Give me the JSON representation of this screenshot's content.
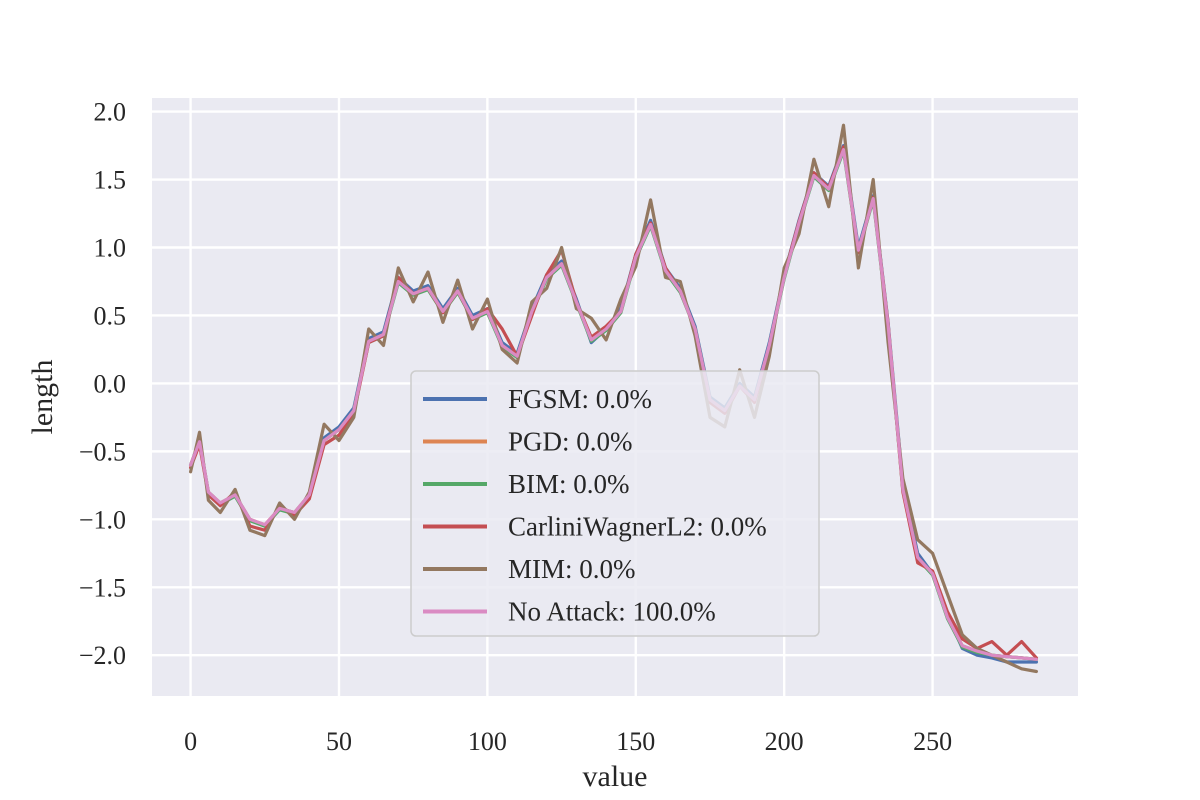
{
  "chart_data": {
    "type": "line",
    "title": "",
    "xlabel": "value",
    "ylabel": "length",
    "xlim": [
      -13,
      299
    ],
    "ylim": [
      -2.3,
      2.1
    ],
    "xticks": [
      0,
      50,
      100,
      150,
      200,
      250
    ],
    "yticks": [
      -2.0,
      -1.5,
      -1.0,
      -0.5,
      0.0,
      0.5,
      1.0,
      1.5,
      2.0
    ],
    "xtick_labels": [
      "0",
      "50",
      "100",
      "150",
      "200",
      "250"
    ],
    "ytick_labels": [
      "−2.0",
      "−1.5",
      "−1.0",
      "−0.5",
      "0.0",
      "0.5",
      "1.0",
      "1.5",
      "2.0"
    ],
    "grid": true,
    "legend_position": "center",
    "base_x": [
      0,
      3,
      6,
      10,
      15,
      20,
      25,
      30,
      35,
      40,
      45,
      50,
      55,
      60,
      65,
      70,
      75,
      80,
      85,
      90,
      95,
      100,
      105,
      110,
      115,
      120,
      125,
      130,
      135,
      140,
      145,
      150,
      155,
      160,
      165,
      170,
      175,
      180,
      185,
      190,
      195,
      200,
      205,
      210,
      215,
      220,
      225,
      230,
      235,
      240,
      245,
      250,
      255,
      260,
      265,
      270,
      275,
      280,
      285
    ],
    "series": [
      {
        "name": "FGSM: 0.0%",
        "color": "#4c72b0",
        "values": [
          -0.6,
          -0.42,
          -0.8,
          -0.88,
          -0.82,
          -1.0,
          -1.05,
          -0.92,
          -0.95,
          -0.82,
          -0.4,
          -0.32,
          -0.18,
          0.33,
          0.38,
          0.78,
          0.68,
          0.72,
          0.55,
          0.7,
          0.5,
          0.55,
          0.3,
          0.22,
          0.55,
          0.8,
          0.9,
          0.62,
          0.3,
          0.4,
          0.55,
          0.95,
          1.2,
          0.85,
          0.7,
          0.42,
          -0.1,
          -0.18,
          0.0,
          -0.1,
          0.3,
          0.8,
          1.2,
          1.55,
          1.45,
          1.75,
          1.0,
          1.38,
          0.45,
          -0.75,
          -1.25,
          -1.4,
          -1.7,
          -1.95,
          -2.0,
          -2.02,
          -2.05,
          -2.05,
          -2.05
        ]
      },
      {
        "name": "PGD: 0.0%",
        "color": "#dd8452",
        "values": [
          -0.6,
          -0.43,
          -0.8,
          -0.88,
          -0.82,
          -1.0,
          -1.04,
          -0.92,
          -0.95,
          -0.82,
          -0.42,
          -0.34,
          -0.2,
          0.31,
          0.36,
          0.75,
          0.66,
          0.7,
          0.53,
          0.68,
          0.48,
          0.53,
          0.28,
          0.2,
          0.53,
          0.78,
          0.88,
          0.6,
          0.32,
          0.4,
          0.53,
          0.93,
          1.17,
          0.83,
          0.68,
          0.4,
          -0.12,
          -0.2,
          -0.02,
          -0.12,
          0.28,
          0.78,
          1.18,
          1.53,
          1.43,
          1.72,
          0.98,
          1.36,
          0.43,
          -0.78,
          -1.28,
          -1.4,
          -1.72,
          -1.93,
          -1.97,
          -2.0,
          -2.01,
          -2.02,
          -2.03
        ]
      },
      {
        "name": "BIM: 0.0%",
        "color": "#55a868",
        "values": [
          -0.6,
          -0.44,
          -0.81,
          -0.89,
          -0.83,
          -1.01,
          -1.05,
          -0.93,
          -0.96,
          -0.83,
          -0.42,
          -0.34,
          -0.2,
          0.3,
          0.35,
          0.74,
          0.65,
          0.69,
          0.52,
          0.67,
          0.47,
          0.52,
          0.27,
          0.19,
          0.52,
          0.77,
          0.87,
          0.59,
          0.31,
          0.39,
          0.52,
          0.92,
          1.16,
          0.82,
          0.67,
          0.4,
          -0.12,
          -0.2,
          -0.02,
          -0.12,
          0.27,
          0.77,
          1.17,
          1.52,
          1.42,
          1.71,
          0.97,
          1.35,
          0.42,
          -0.79,
          -1.29,
          -1.41,
          -1.73,
          -1.94,
          -1.98,
          -2.0,
          -2.01,
          -2.02,
          -2.03
        ]
      },
      {
        "name": "CarliniWagnerL2: 0.0%",
        "color": "#c44e52",
        "values": [
          -0.62,
          -0.45,
          -0.82,
          -0.9,
          -0.8,
          -1.05,
          -1.08,
          -0.9,
          -0.97,
          -0.85,
          -0.45,
          -0.38,
          -0.22,
          0.3,
          0.35,
          0.78,
          0.66,
          0.7,
          0.52,
          0.68,
          0.47,
          0.55,
          0.4,
          0.2,
          0.5,
          0.8,
          0.98,
          0.6,
          0.34,
          0.42,
          0.53,
          0.95,
          1.18,
          0.85,
          0.68,
          0.4,
          -0.14,
          -0.22,
          -0.02,
          -0.14,
          0.27,
          0.8,
          1.19,
          1.55,
          1.44,
          1.74,
          0.96,
          1.37,
          0.44,
          -0.8,
          -1.32,
          -1.38,
          -1.68,
          -1.88,
          -1.95,
          -1.9,
          -2.0,
          -1.9,
          -2.02
        ]
      },
      {
        "name": "MIM: 0.0%",
        "color": "#937860",
        "values": [
          -0.65,
          -0.36,
          -0.86,
          -0.95,
          -0.78,
          -1.08,
          -1.12,
          -0.88,
          -1.0,
          -0.8,
          -0.3,
          -0.42,
          -0.25,
          0.4,
          0.28,
          0.85,
          0.6,
          0.82,
          0.45,
          0.76,
          0.4,
          0.62,
          0.25,
          0.15,
          0.6,
          0.7,
          1.0,
          0.55,
          0.48,
          0.32,
          0.62,
          0.86,
          1.35,
          0.78,
          0.75,
          0.35,
          -0.25,
          -0.32,
          0.1,
          -0.25,
          0.2,
          0.85,
          1.1,
          1.65,
          1.3,
          1.9,
          0.85,
          1.5,
          0.3,
          -0.7,
          -1.15,
          -1.25,
          -1.55,
          -1.85,
          -1.95,
          -2.0,
          -2.05,
          -2.1,
          -2.12
        ]
      },
      {
        "name": "No Attack: 100.0%",
        "color": "#da8bc3",
        "values": [
          -0.6,
          -0.43,
          -0.8,
          -0.88,
          -0.82,
          -1.0,
          -1.04,
          -0.92,
          -0.95,
          -0.82,
          -0.42,
          -0.34,
          -0.2,
          0.31,
          0.36,
          0.75,
          0.66,
          0.7,
          0.53,
          0.68,
          0.48,
          0.53,
          0.28,
          0.2,
          0.53,
          0.78,
          0.88,
          0.6,
          0.32,
          0.4,
          0.53,
          0.93,
          1.17,
          0.83,
          0.68,
          0.4,
          -0.12,
          -0.2,
          -0.02,
          -0.12,
          0.28,
          0.78,
          1.18,
          1.53,
          1.43,
          1.72,
          0.98,
          1.36,
          0.43,
          -0.78,
          -1.28,
          -1.4,
          -1.72,
          -1.93,
          -1.97,
          -2.0,
          -2.01,
          -2.02,
          -2.03
        ]
      }
    ]
  }
}
